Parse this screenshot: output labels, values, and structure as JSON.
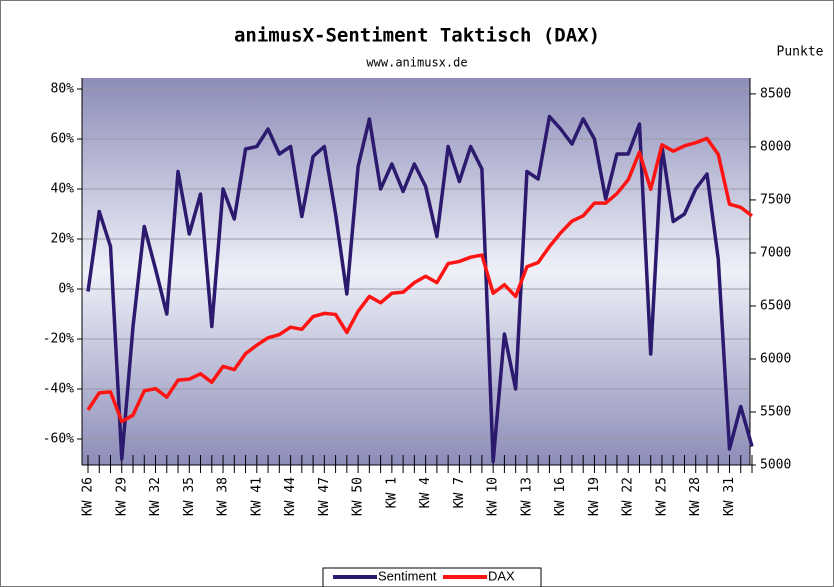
{
  "chart_data": {
    "type": "line",
    "title": "animusX-Sentiment Taktisch (DAX)",
    "subtitle": "www.animusx.de",
    "y2_label": "Punkte",
    "categories": [
      "KW 26",
      null,
      null,
      "KW 29",
      null,
      null,
      "KW 32",
      null,
      null,
      "KW 35",
      null,
      null,
      "KW 38",
      null,
      null,
      "KW 41",
      null,
      null,
      "KW 44",
      null,
      null,
      "KW 47",
      null,
      null,
      "KW 50",
      null,
      null,
      "KW 1",
      null,
      null,
      "KW 4",
      null,
      null,
      "KW 7",
      null,
      null,
      "KW 10",
      null,
      null,
      "KW 13",
      null,
      null,
      "KW 16",
      null,
      null,
      "KW 19",
      null,
      null,
      "KW 22",
      null,
      null,
      "KW 25",
      null,
      null,
      "KW 28",
      null,
      null,
      "KW 31",
      null,
      null
    ],
    "series": [
      {
        "name": "Sentiment",
        "color": "#2b1a6e",
        "axis": "y",
        "values": [
          -1,
          31,
          17,
          -68,
          -15,
          25,
          8,
          -10,
          47,
          22,
          38,
          -15,
          40,
          28,
          56,
          57,
          64,
          54,
          57,
          29,
          53,
          57,
          30,
          -2,
          49,
          68,
          40,
          50,
          39,
          50,
          41,
          21,
          57,
          43,
          57,
          48,
          -69,
          -18,
          -40,
          47,
          44,
          69,
          64,
          58,
          68,
          60,
          36,
          54,
          54,
          66,
          -26,
          57,
          27,
          30,
          40,
          46,
          12,
          -64,
          -47,
          -63
        ]
      },
      {
        "name": "DAX",
        "color": "#ff1414",
        "axis": "y2",
        "values": [
          5520,
          5680,
          5690,
          5410,
          5470,
          5700,
          5720,
          5640,
          5800,
          5810,
          5860,
          5780,
          5930,
          5900,
          6050,
          6130,
          6200,
          6230,
          6300,
          6280,
          6400,
          6430,
          6420,
          6250,
          6450,
          6590,
          6530,
          6620,
          6630,
          6720,
          6780,
          6720,
          6900,
          6920,
          6960,
          6980,
          6620,
          6700,
          6590,
          6870,
          6910,
          7060,
          7190,
          7300,
          7350,
          7470,
          7470,
          7560,
          7690,
          7950,
          7600,
          8020,
          7960,
          8010,
          8040,
          8080,
          7930,
          7460,
          7430,
          7350
        ]
      }
    ],
    "ylim": [
      -70.4,
      84.4
    ],
    "yticks": [
      {
        "value": -60,
        "label": "-60%"
      },
      {
        "value": -40,
        "label": "-40%"
      },
      {
        "value": -20,
        "label": "-20%"
      },
      {
        "value": 0,
        "label": "0%"
      },
      {
        "value": 20,
        "label": "20%"
      },
      {
        "value": 40,
        "label": "40%"
      },
      {
        "value": 60,
        "label": "60%"
      },
      {
        "value": 80,
        "label": "80%"
      }
    ],
    "y2lim": [
      5000,
      8650
    ],
    "y2ticks": [
      5000,
      5500,
      6000,
      6500,
      7000,
      7500,
      8000,
      8500
    ],
    "grid": true
  }
}
